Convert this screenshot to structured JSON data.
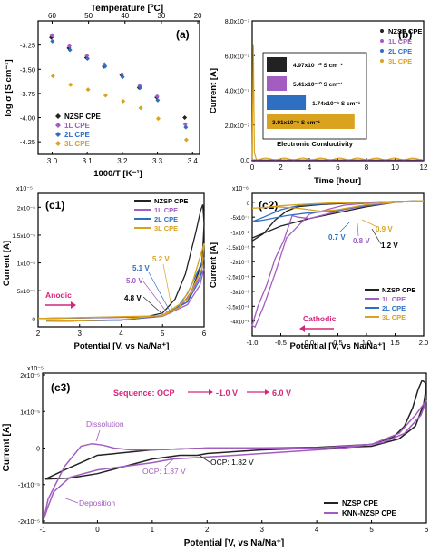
{
  "colors": {
    "black": "#222222",
    "purple": "#a35cc0",
    "blue": "#2e6fc2",
    "gold": "#d9a320",
    "magenta": "#d6247a"
  },
  "chart_data": [
    {
      "id": "a",
      "panel_label": "(a)",
      "type": "scatter",
      "xlabel": "1000/T [K⁻¹]",
      "ylabel": "log σ [S cm⁻¹]",
      "top_xlabel": "Temperature [ºC]",
      "xlim": [
        2.96,
        3.42
      ],
      "ylim": [
        -4.38,
        -3.0
      ],
      "x_ticks": [
        "3.0",
        "3.1",
        "3.2",
        "3.3",
        "3.4"
      ],
      "y_ticks": [
        "-3.25",
        "-3.50",
        "-3.75",
        "-4.00",
        "-4.25"
      ],
      "top_ticks": [
        "60",
        "50",
        "40",
        "30",
        "20"
      ],
      "x": [
        3.0,
        3.05,
        3.1,
        3.15,
        3.2,
        3.25,
        3.3,
        3.38
      ],
      "series": [
        {
          "name": "NZSP CPE",
          "values": [
            -3.17,
            -3.28,
            -3.38,
            -3.47,
            -3.56,
            -3.69,
            -3.79,
            -4.0
          ]
        },
        {
          "name": "1L CPE",
          "values": [
            -3.15,
            -3.26,
            -3.36,
            -3.45,
            -3.55,
            -3.67,
            -3.78,
            -4.07
          ]
        },
        {
          "name": "2L CPE",
          "values": [
            -3.21,
            -3.3,
            -3.39,
            -3.47,
            -3.58,
            -3.69,
            -3.82,
            -4.1
          ]
        },
        {
          "name": "3L CPE",
          "values": [
            -3.57,
            -3.66,
            -3.71,
            -3.77,
            -3.83,
            -3.9,
            -4.01,
            -4.23
          ]
        }
      ]
    },
    {
      "id": "b",
      "panel_label": "(b)",
      "type": "line",
      "xlabel": "Time [hour]",
      "ylabel": "Current [A]",
      "xlim": [
        0,
        12
      ],
      "ylim": [
        0,
        8e-07
      ],
      "x_ticks": [
        "0",
        "2",
        "4",
        "6",
        "8",
        "10",
        "12"
      ],
      "y_ticks": [
        "0.0",
        "2.0x10⁻⁷",
        "4.0x10⁻⁷",
        "6.0x10⁻⁷",
        "8.0x10⁻⁷"
      ],
      "legend": [
        "NZSP CPE",
        "1L CPE",
        "2L CPE",
        "3L CPE"
      ],
      "inset": {
        "title": "Electronic Conductivity",
        "bars": [
          {
            "label": "4.97x10⁻¹⁰ S cm⁻¹",
            "value": 4.97e-10
          },
          {
            "label": "5.41x10⁻¹⁰ S cm⁻¹",
            "value": 5.41e-10
          },
          {
            "label": "1.74x10⁻⁹ S cm⁻¹",
            "value": 1.74e-09
          },
          {
            "label": "3.91x10⁻⁹ S cm⁻¹",
            "value": 3.91e-09
          }
        ]
      }
    },
    {
      "id": "c1",
      "panel_label": "(c1)",
      "type": "line",
      "xlabel": "Potential [V, vs Na/Na⁺]",
      "ylabel": "Current [A]",
      "scale_label": "x10⁻⁵",
      "xlim": [
        2,
        6
      ],
      "ylim": [
        -0.15,
        2.25
      ],
      "x_ticks": [
        "2",
        "3",
        "4",
        "5",
        "6"
      ],
      "y_ticks": [
        "0",
        "5x10⁻⁶",
        "1x10⁻⁵",
        "1.5x10⁻⁵",
        "2x10⁻⁵"
      ],
      "annotations": {
        "anodic": "Anodic",
        "v_nzsp": "4.8 V",
        "v_1l": "5.0 V",
        "v_2l": "5.1 V",
        "v_3l": "5.2 V"
      },
      "series": [
        {
          "name": "NZSP CPE",
          "x": [
            2,
            4.6,
            5.0,
            5.3,
            5.55,
            5.8,
            5.92,
            5.97,
            6.0,
            5.95,
            5.6,
            5.0,
            4.0,
            3.0,
            2.2
          ],
          "y": [
            0,
            0.03,
            0.1,
            0.35,
            0.8,
            1.55,
            1.95,
            2.05,
            1.7,
            1.0,
            0.3,
            0.05,
            -0.03,
            -0.04,
            -0.05
          ]
        },
        {
          "name": "1L CPE",
          "x": [
            2,
            4.8,
            5.2,
            5.5,
            5.75,
            5.95,
            6.0,
            5.9,
            5.6,
            5.0,
            4.0,
            3.0,
            2.2
          ],
          "y": [
            0,
            0.03,
            0.1,
            0.28,
            0.55,
            0.82,
            0.9,
            0.6,
            0.25,
            0.04,
            -0.03,
            -0.04,
            -0.05
          ]
        },
        {
          "name": "2L CPE",
          "x": [
            2,
            4.9,
            5.3,
            5.6,
            5.85,
            6.0,
            5.9,
            5.6,
            5.0,
            4.0,
            3.0,
            2.2
          ],
          "y": [
            0,
            0.04,
            0.15,
            0.45,
            0.85,
            1.1,
            0.7,
            0.3,
            0.05,
            -0.03,
            -0.04,
            -0.05
          ]
        },
        {
          "name": "3L CPE",
          "x": [
            2,
            5.0,
            5.4,
            5.7,
            5.9,
            6.0,
            5.95,
            5.6,
            5.0,
            4.0,
            3.0,
            2.2
          ],
          "y": [
            0,
            0.05,
            0.2,
            0.6,
            1.1,
            1.35,
            0.9,
            0.35,
            0.06,
            -0.02,
            -0.04,
            -0.05
          ]
        }
      ]
    },
    {
      "id": "c2",
      "panel_label": "(c2)",
      "type": "line",
      "xlabel": "Potential [V, vs Na/Na⁺]",
      "ylabel": "Current [A]",
      "scale_label": "x10⁻⁶",
      "xlim": [
        -1.0,
        2.0
      ],
      "ylim": [
        -4.5,
        0.3
      ],
      "x_ticks": [
        "-1.0",
        "-0.5",
        "0.0",
        "0.5",
        "1.0",
        "1.5",
        "2.0"
      ],
      "y_ticks": [
        "0",
        "-5x10⁻⁷",
        "-1x10⁻⁶",
        "-1.5x10⁻⁶",
        "-2x10⁻⁶",
        "-2.5x10⁻⁶",
        "-3x10⁻⁶",
        "-3.5x10⁻⁶",
        "-4x10⁻⁶"
      ],
      "annotations": {
        "cathodic": "Cathodic",
        "v_nzsp": "1.2 V",
        "v_1l": "0.8 V",
        "v_2l": "0.7 V",
        "v_3l": "0.9 V"
      },
      "series": [
        {
          "name": "NZSP CPE",
          "x": [
            2.0,
            1.5,
            1.0,
            0.5,
            0.0,
            -0.5,
            -1.0,
            -1.0,
            -0.8,
            -0.6,
            -0.4,
            -0.2,
            0.2,
            0.8,
            1.4,
            2.0
          ],
          "y": [
            0.05,
            0.0,
            -0.15,
            -0.35,
            -0.55,
            -0.8,
            -1.2,
            -1.3,
            -1.05,
            -0.6,
            -0.3,
            -0.15,
            -0.08,
            -0.02,
            0.02,
            0.05
          ]
        },
        {
          "name": "1L CPE",
          "x": [
            2.0,
            1.5,
            1.0,
            0.6,
            0.3,
            0.0,
            -0.2,
            -0.3,
            -0.45,
            -0.6,
            -0.75,
            -0.9,
            -1.0,
            -0.95,
            -0.8,
            -0.6,
            -0.4,
            0.0,
            0.6,
            1.2,
            2.0
          ],
          "y": [
            0.05,
            0.0,
            -0.12,
            -0.25,
            -0.4,
            -0.55,
            -0.5,
            -0.45,
            -1.3,
            -1.9,
            -2.8,
            -3.5,
            -4.15,
            -4.2,
            -3.5,
            -2.4,
            -1.2,
            -0.4,
            -0.1,
            0.0,
            0.05
          ]
        },
        {
          "name": "2L CPE",
          "x": [
            2.0,
            1.5,
            1.0,
            0.7,
            0.4,
            0.0,
            -0.4,
            -0.8,
            -1.0,
            -0.8,
            -0.5,
            -0.2,
            0.3,
            1.0,
            2.0
          ],
          "y": [
            0.05,
            0.0,
            -0.1,
            -0.2,
            -0.3,
            -0.35,
            -0.45,
            -0.6,
            -0.65,
            -0.5,
            -0.25,
            -0.12,
            -0.05,
            0.0,
            0.05
          ]
        },
        {
          "name": "3L CPE",
          "x": [
            2.0,
            1.5,
            1.0,
            0.8,
            0.5,
            0.2,
            -0.2,
            -0.6,
            -1.0,
            -0.8,
            -0.5,
            -0.2,
            0.3,
            1.0,
            2.0
          ],
          "y": [
            0.05,
            0.0,
            -0.08,
            -0.15,
            -0.25,
            -0.3,
            -0.2,
            -0.15,
            -0.2,
            -0.18,
            -0.12,
            -0.08,
            -0.03,
            0.0,
            0.05
          ]
        }
      ]
    },
    {
      "id": "c3",
      "panel_label": "(c3)",
      "type": "line",
      "xlabel": "Potential [V, vs Na/Na⁺]",
      "ylabel": "Current [A]",
      "scale_label": "x10⁻⁵",
      "xlim": [
        -1,
        6
      ],
      "ylim": [
        -2.05,
        2.05
      ],
      "x_ticks": [
        "-1",
        "0",
        "1",
        "2",
        "3",
        "4",
        "5",
        "6"
      ],
      "y_ticks": [
        "2x10⁻⁵",
        "1x10⁻⁵",
        "0",
        "-1x10⁻⁵",
        "-2x10⁻⁵"
      ],
      "annotations": {
        "sequence": "Sequence: OCP",
        "seq_v1": "-1.0 V",
        "seq_v2": "6.0 V",
        "dissolution": "Dissolution",
        "deposition": "Deposition",
        "ocp_1": "OCP: 1.82 V",
        "ocp_2": "OCP: 1.37 V"
      },
      "series": [
        {
          "name": "NZSP CPE",
          "x": [
            1.82,
            1.5,
            1.0,
            0.5,
            0.0,
            -0.5,
            -0.95,
            -0.6,
            0.0,
            1.0,
            2.0,
            3.0,
            4.0,
            5.0,
            5.4,
            5.6,
            5.75,
            5.85,
            5.92,
            5.97,
            6.0,
            5.95,
            5.8,
            5.5,
            5.0,
            4.0,
            3.0,
            2.0,
            1.82
          ],
          "y": [
            -0.2,
            -0.2,
            -0.3,
            -0.5,
            -0.7,
            -0.82,
            -0.85,
            -0.6,
            -0.2,
            -0.05,
            0,
            0,
            0.02,
            0.1,
            0.3,
            0.6,
            1.1,
            1.6,
            1.85,
            1.8,
            1.7,
            1.2,
            0.6,
            0.25,
            0.05,
            0,
            -0.05,
            -0.15,
            -0.2
          ]
        },
        {
          "name": "KNN-NZSP CPE",
          "x": [
            1.37,
            1.0,
            0.5,
            0.0,
            -0.5,
            -0.8,
            -0.9,
            -0.98,
            -0.9,
            -0.6,
            -0.3,
            -0.1,
            0.1,
            0.3,
            0.6,
            1.0,
            2.0,
            3.0,
            4.0,
            5.0,
            5.5,
            5.8,
            6.0,
            5.9,
            5.6,
            5.2,
            4.5,
            3.5,
            2.5,
            1.37
          ],
          "y": [
            -0.3,
            -0.4,
            -0.5,
            -0.6,
            -0.8,
            -1.2,
            -1.6,
            -1.95,
            -1.4,
            -0.5,
            0.05,
            0.12,
            0.08,
            0.0,
            -0.05,
            -0.05,
            0,
            0,
            0,
            0.1,
            0.4,
            0.9,
            1.3,
            0.9,
            0.4,
            0.15,
            0,
            -0.1,
            -0.2,
            -0.3
          ]
        }
      ]
    }
  ]
}
